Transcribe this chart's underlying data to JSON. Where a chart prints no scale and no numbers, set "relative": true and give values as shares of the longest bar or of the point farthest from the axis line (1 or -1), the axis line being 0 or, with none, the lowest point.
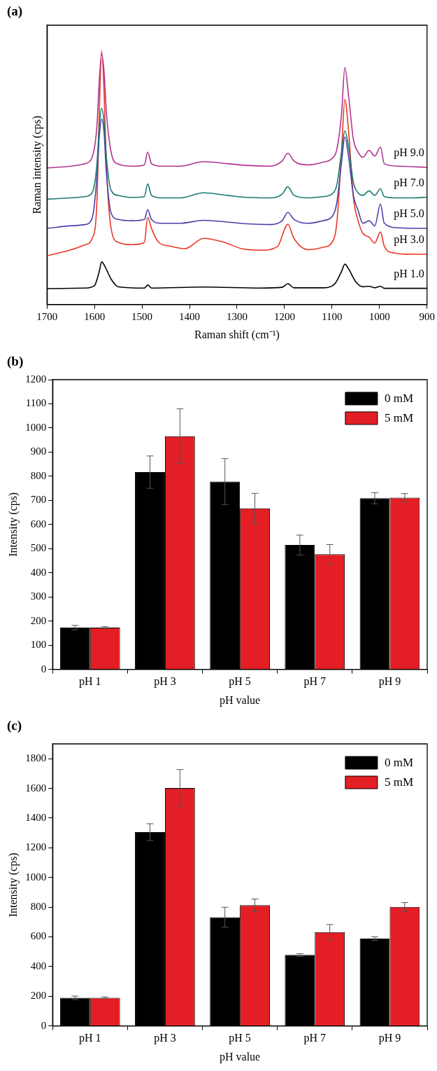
{
  "chart_data": [
    {
      "type": "line",
      "title": "(a)",
      "xlabel": "Raman shift (cm⁻¹)",
      "ylabel": "Raman intensity (cps)",
      "relative": true,
      "tick_labels": "x",
      "legend": false,
      "xlim": [
        1700,
        900
      ],
      "xticks": [
        1700,
        1600,
        1500,
        1400,
        1300,
        1200,
        1100,
        1000,
        900
      ],
      "series": [
        {
          "name": "pH 9.0",
          "color": "#b0338f",
          "x": [
            1700,
            1650,
            1620,
            1605,
            1595,
            1590,
            1585,
            1580,
            1575,
            1565,
            1550,
            1520,
            1495,
            1488,
            1480,
            1460,
            1420,
            1370,
            1320,
            1280,
            1230,
            1205,
            1193,
            1180,
            1150,
            1120,
            1100,
            1090,
            1080,
            1073,
            1065,
            1055,
            1045,
            1035,
            1022,
            1010,
            998,
            990,
            960,
            930,
            900
          ],
          "values": [
            0.538,
            0.545,
            0.555,
            0.58,
            0.7,
            0.88,
            0.986,
            0.92,
            0.76,
            0.6,
            0.553,
            0.545,
            0.55,
            0.6,
            0.555,
            0.545,
            0.545,
            0.563,
            0.555,
            0.548,
            0.545,
            0.565,
            0.596,
            0.565,
            0.55,
            0.56,
            0.575,
            0.61,
            0.75,
            0.934,
            0.82,
            0.65,
            0.6,
            0.58,
            0.607,
            0.585,
            0.62,
            0.555,
            0.545,
            0.543,
            0.54
          ]
        },
        {
          "name": "pH 7.0",
          "color": "#1a7a6e",
          "x": [
            1700,
            1650,
            1620,
            1605,
            1595,
            1590,
            1585,
            1580,
            1575,
            1565,
            1550,
            1520,
            1495,
            1488,
            1480,
            1460,
            1420,
            1370,
            1320,
            1280,
            1230,
            1205,
            1193,
            1180,
            1150,
            1120,
            1100,
            1090,
            1080,
            1073,
            1065,
            1055,
            1045,
            1035,
            1022,
            1010,
            998,
            990,
            960,
            930,
            900
          ],
          "values": [
            0.415,
            0.42,
            0.425,
            0.44,
            0.55,
            0.7,
            0.772,
            0.72,
            0.58,
            0.45,
            0.43,
            0.422,
            0.425,
            0.475,
            0.43,
            0.42,
            0.42,
            0.44,
            0.43,
            0.422,
            0.42,
            0.435,
            0.464,
            0.43,
            0.42,
            0.425,
            0.435,
            0.47,
            0.6,
            0.684,
            0.62,
            0.48,
            0.44,
            0.43,
            0.448,
            0.43,
            0.456,
            0.425,
            0.42,
            0.42,
            0.423
          ]
        },
        {
          "name": "pH 5.0",
          "color": "#4b3fa8",
          "x": [
            1700,
            1650,
            1620,
            1605,
            1595,
            1590,
            1585,
            1580,
            1575,
            1565,
            1550,
            1520,
            1495,
            1488,
            1480,
            1460,
            1420,
            1370,
            1320,
            1280,
            1230,
            1205,
            1193,
            1180,
            1150,
            1120,
            1100,
            1090,
            1080,
            1073,
            1065,
            1055,
            1045,
            1035,
            1022,
            1010,
            998,
            990,
            960,
            930,
            900
          ],
          "values": [
            0.3,
            0.31,
            0.315,
            0.34,
            0.5,
            0.66,
            0.73,
            0.68,
            0.52,
            0.36,
            0.335,
            0.33,
            0.335,
            0.374,
            0.335,
            0.32,
            0.32,
            0.332,
            0.325,
            0.318,
            0.315,
            0.33,
            0.363,
            0.335,
            0.32,
            0.33,
            0.346,
            0.4,
            0.56,
            0.66,
            0.58,
            0.43,
            0.37,
            0.32,
            0.33,
            0.31,
            0.396,
            0.32,
            0.302,
            0.3,
            0.3
          ]
        },
        {
          "name": "pH 3.0",
          "color": "#ee3524",
          "x": [
            1700,
            1650,
            1620,
            1605,
            1595,
            1590,
            1585,
            1580,
            1575,
            1565,
            1550,
            1520,
            1495,
            1488,
            1480,
            1465,
            1440,
            1410,
            1370,
            1330,
            1290,
            1250,
            1215,
            1193,
            1180,
            1150,
            1120,
            1100,
            1090,
            1080,
            1073,
            1065,
            1055,
            1045,
            1035,
            1022,
            1010,
            998,
            990,
            975,
            930,
            900
          ],
          "values": [
            0.192,
            0.215,
            0.235,
            0.26,
            0.4,
            0.75,
            1,
            0.85,
            0.55,
            0.3,
            0.245,
            0.236,
            0.245,
            0.343,
            0.3,
            0.245,
            0.23,
            0.22,
            0.261,
            0.247,
            0.22,
            0.214,
            0.228,
            0.316,
            0.26,
            0.216,
            0.225,
            0.245,
            0.32,
            0.6,
            0.808,
            0.68,
            0.42,
            0.33,
            0.28,
            0.266,
            0.242,
            0.286,
            0.23,
            0.205,
            0.198,
            0.198
          ]
        },
        {
          "name": "pH 1.0",
          "color": "#000000",
          "x": [
            1700,
            1620,
            1600,
            1590,
            1585,
            1578,
            1565,
            1550,
            1495,
            1488,
            1480,
            1370,
            1250,
            1205,
            1193,
            1180,
            1120,
            1095,
            1080,
            1073,
            1065,
            1050,
            1035,
            1022,
            1010,
            998,
            990,
            900
          ],
          "values": [
            0.063,
            0.065,
            0.075,
            0.13,
            0.168,
            0.15,
            0.1,
            0.07,
            0.065,
            0.077,
            0.065,
            0.069,
            0.065,
            0.068,
            0.082,
            0.066,
            0.066,
            0.08,
            0.13,
            0.159,
            0.14,
            0.09,
            0.07,
            0.072,
            0.066,
            0.072,
            0.064,
            0.064
          ]
        }
      ]
    },
    {
      "type": "bar",
      "title": "(b)",
      "xlabel": "pH value",
      "ylabel": "Intensity (cps)",
      "categories": [
        "pH 1",
        "pH 3",
        "pH 5",
        "pH 7",
        "pH 9"
      ],
      "ylim": [
        0,
        1200
      ],
      "yticks": [
        0,
        100,
        200,
        300,
        400,
        500,
        600,
        700,
        800,
        900,
        1000,
        1100,
        1200
      ],
      "legend": "top right",
      "series": [
        {
          "name": "0 mM",
          "color": "#000000",
          "values": [
            173,
            817,
            778,
            515,
            709
          ],
          "errors": [
            9,
            67,
            95,
            41,
            23
          ]
        },
        {
          "name": "5 mM",
          "color": "#e31e24",
          "values": [
            173,
            966,
            667,
            477,
            711
          ],
          "errors": [
            4,
            113,
            62,
            40,
            17
          ]
        }
      ]
    },
    {
      "type": "bar",
      "title": "(c)",
      "xlabel": "pH value",
      "ylabel": "Intensity (cps)",
      "categories": [
        "pH 1",
        "pH 3",
        "pH 5",
        "pH 7",
        "pH 9"
      ],
      "ylim": [
        0,
        1900
      ],
      "yticks": [
        0,
        200,
        400,
        600,
        800,
        1000,
        1200,
        1400,
        1600,
        1800
      ],
      "legend": "top right",
      "series": [
        {
          "name": "0 mM",
          "color": "#000000",
          "values": [
            189,
            1305,
            732,
            478,
            588
          ],
          "errors": [
            12,
            57,
            67,
            9,
            12
          ]
        },
        {
          "name": "5 mM",
          "color": "#e31e24",
          "values": [
            189,
            1603,
            813,
            632,
            801
          ],
          "errors": [
            6,
            124,
            42,
            51,
            30
          ]
        }
      ]
    }
  ]
}
